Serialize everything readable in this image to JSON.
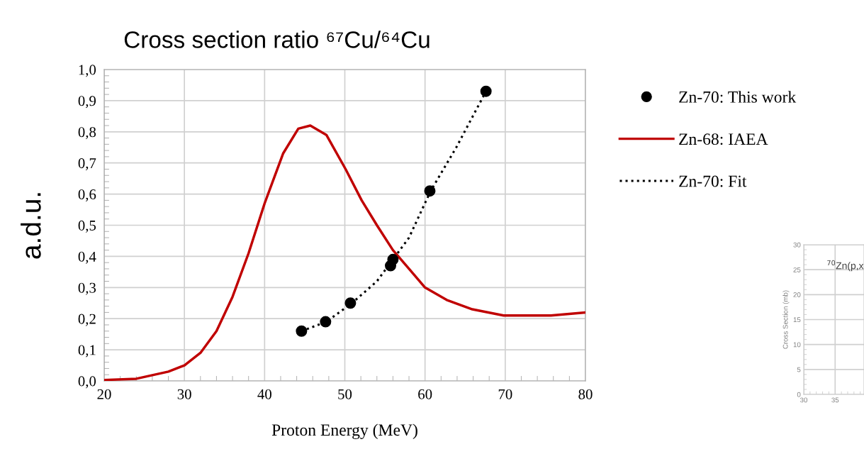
{
  "chart_data": [
    {
      "type": "scatter",
      "title": "Cross section ratio ⁶⁷Cu/⁶⁴Cu",
      "xlabel": "Proton Energy (MeV)",
      "ylabel": "a.d.u.",
      "xlim": [
        20,
        80
      ],
      "xticks": [
        20,
        30,
        40,
        50,
        60,
        70,
        80
      ],
      "ylim": [
        0,
        1
      ],
      "yticks": [
        {
          "value": 0,
          "label": "0,0"
        },
        {
          "value": 0.1,
          "label": "0,1"
        },
        {
          "value": 0.2,
          "label": "0,2"
        },
        {
          "value": 0.3,
          "label": "0,3"
        },
        {
          "value": 0.4,
          "label": "0,4"
        },
        {
          "value": 0.5,
          "label": "0,5"
        },
        {
          "value": 0.6,
          "label": "0,6"
        },
        {
          "value": 0.7,
          "label": "0,7"
        },
        {
          "value": 0.8,
          "label": "0,8"
        },
        {
          "value": 0.9,
          "label": "0,9"
        },
        {
          "value": 1,
          "label": "1,0"
        }
      ],
      "grid": true,
      "legend": "right",
      "series": [
        {
          "name": "Zn-70: This work",
          "marker": "circle",
          "color": "#000000",
          "x": [
            44.6,
            47.6,
            50.7,
            55.7,
            56.0,
            60.6,
            67.6
          ],
          "values": [
            0.16,
            0.19,
            0.25,
            0.37,
            0.39,
            0.61,
            0.93
          ]
        },
        {
          "name": "Zn-68: IAEA",
          "type": "line",
          "line_style": "solid",
          "color": "#c00000",
          "x": [
            20,
            24,
            28,
            30,
            32,
            34,
            36,
            38,
            40,
            42.3,
            44.2,
            45.7,
            47.7,
            50.1,
            52.1,
            54,
            56,
            58,
            60,
            62.7,
            65.9,
            69.8,
            71.8,
            75.7,
            80
          ],
          "values": [
            0.003,
            0.007,
            0.03,
            0.05,
            0.09,
            0.16,
            0.27,
            0.41,
            0.57,
            0.73,
            0.81,
            0.82,
            0.79,
            0.68,
            0.58,
            0.5,
            0.42,
            0.36,
            0.3,
            0.26,
            0.23,
            0.21,
            0.21,
            0.21,
            0.22
          ]
        },
        {
          "name": "Zn-70: Fit",
          "type": "line",
          "line_style": "dotted",
          "color": "#000000",
          "x": [
            44.6,
            47.7,
            50.9,
            54,
            56,
            58,
            60.7,
            63.9,
            67.6
          ],
          "values": [
            0.16,
            0.19,
            0.25,
            0.32,
            0.39,
            0.46,
            0.61,
            0.75,
            0.93
          ]
        }
      ]
    },
    {
      "type": "line",
      "title": "$^{70}$Zn(p,x",
      "ylabel": "Cross Section (mb)",
      "xlim": [
        30,
        39.6
      ],
      "xticks": [
        30,
        35
      ],
      "ylim": [
        0,
        30
      ],
      "yticks": [
        0,
        5,
        10,
        15,
        20,
        25,
        30
      ],
      "grid": true
    }
  ]
}
